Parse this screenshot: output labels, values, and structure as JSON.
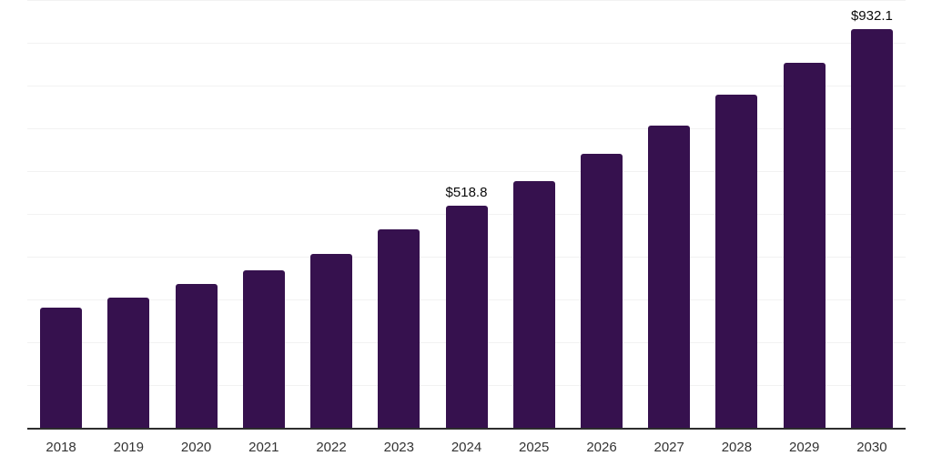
{
  "chart_data": {
    "type": "bar",
    "categories": [
      "2018",
      "2019",
      "2020",
      "2021",
      "2022",
      "2023",
      "2024",
      "2025",
      "2026",
      "2027",
      "2028",
      "2029",
      "2030"
    ],
    "values": [
      280,
      305,
      336,
      368,
      406,
      464,
      518.8,
      577,
      640,
      706,
      779,
      853,
      932.1
    ],
    "data_labels": {
      "2024": "$518.8",
      "2030": "$932.1"
    },
    "ylim": [
      0,
      1000
    ],
    "gridline_interval": 100,
    "grid": "horizontal",
    "legend": "none",
    "bar_color": "#36114E"
  },
  "colors": {
    "background": "#ffffff",
    "bar": "#36114E",
    "axis_line": "#2d2d2d",
    "gridline": "#f2f2f2",
    "tick_label": "#333333",
    "value_label": "#0a0a0a"
  }
}
